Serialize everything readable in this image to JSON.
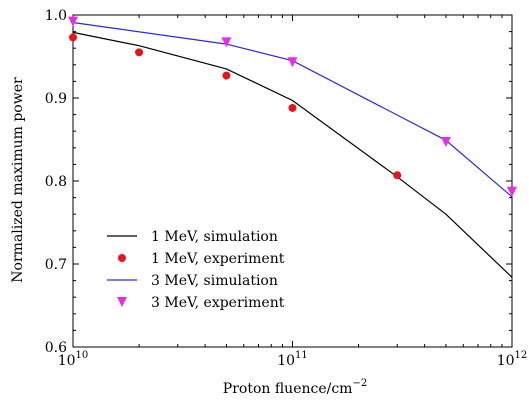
{
  "chart_data": {
    "type": "line",
    "x_scale": "log",
    "xlabel": "Proton fluence/cm",
    "xlabel_sup": "−2",
    "ylabel": "Normalized maximum power",
    "xlim": [
      10000000000.0,
      1000000000000.0
    ],
    "ylim": [
      0.6,
      1.0
    ],
    "grid": false,
    "legend_position": "bottom-left",
    "x_ticks": [
      {
        "value": 10000000000.0,
        "base": "10",
        "exp": "10"
      },
      {
        "value": 100000000000.0,
        "base": "10",
        "exp": "11"
      },
      {
        "value": 1000000000000.0,
        "base": "10",
        "exp": "12"
      }
    ],
    "y_ticks": [
      {
        "value": 0.6,
        "label": "0.6"
      },
      {
        "value": 0.7,
        "label": "0.7"
      },
      {
        "value": 0.8,
        "label": "0.8"
      },
      {
        "value": 0.9,
        "label": "0.9"
      },
      {
        "value": 1.0,
        "label": "1.0"
      }
    ],
    "series": [
      {
        "name": "1 MeV, simulation",
        "kind": "line",
        "color": "#000000",
        "x": [
          10000000000.0,
          20000000000.0,
          50000000000.0,
          100000000000.0,
          300000000000.0,
          500000000000.0,
          1000000000000.0
        ],
        "y": [
          0.979,
          0.963,
          0.935,
          0.897,
          0.805,
          0.76,
          0.684
        ]
      },
      {
        "name": "1 MeV, experiment",
        "kind": "marker",
        "marker": "circle",
        "color": "#e8141c",
        "x": [
          10000000000.0,
          20000000000.0,
          50000000000.0,
          100000000000.0,
          300000000000.0
        ],
        "y": [
          0.973,
          0.955,
          0.927,
          0.888,
          0.807
        ]
      },
      {
        "name": "3 MeV, simulation",
        "kind": "line",
        "color": "#2a2ad4",
        "x": [
          10000000000.0,
          50000000000.0,
          100000000000.0,
          500000000000.0,
          1000000000000.0
        ],
        "y": [
          0.991,
          0.965,
          0.945,
          0.849,
          0.781
        ]
      },
      {
        "name": "3 MeV, experiment",
        "kind": "marker",
        "marker": "triangle-down",
        "color": "#e62ee6",
        "x": [
          10000000000.0,
          50000000000.0,
          100000000000.0,
          500000000000.0,
          1000000000000.0
        ],
        "y": [
          0.992,
          0.967,
          0.943,
          0.847,
          0.787
        ]
      }
    ]
  }
}
